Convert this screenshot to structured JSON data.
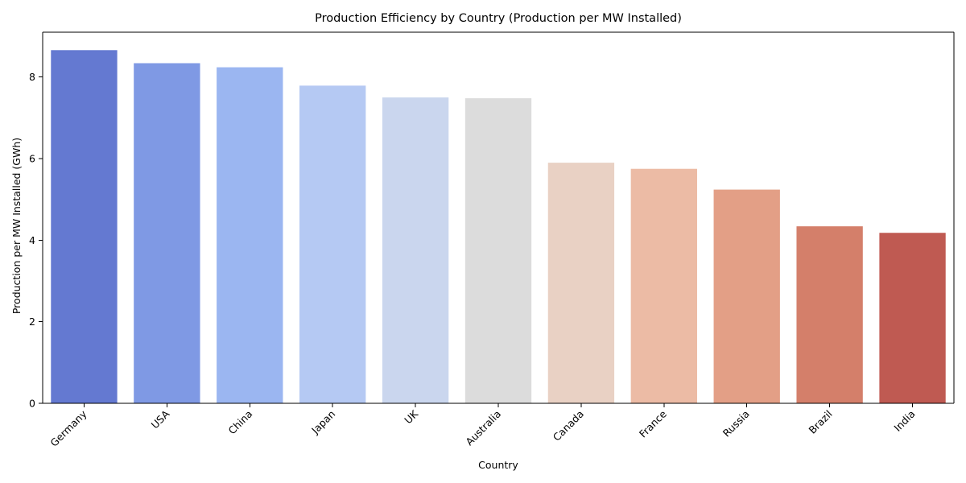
{
  "chart_data": {
    "type": "bar",
    "title": "Production Efficiency by Country (Production per MW Installed)",
    "xlabel": "Country",
    "ylabel": "Production per MW Installed (GWh)",
    "categories": [
      "Germany",
      "USA",
      "China",
      "Japan",
      "UK",
      "Australia",
      "Canada",
      "France",
      "Russia",
      "Brazil",
      "India"
    ],
    "values": [
      8.66,
      8.34,
      8.24,
      7.79,
      7.5,
      7.48,
      5.9,
      5.75,
      5.24,
      4.34,
      4.18
    ],
    "colors": [
      "#6479d1",
      "#7f99e4",
      "#9bb6f1",
      "#b5c9f3",
      "#cad6ee",
      "#dcdcdc",
      "#e9d1c4",
      "#ecbba5",
      "#e39f86",
      "#d47f6a",
      "#bf5a52"
    ],
    "ylim": [
      0,
      9.1
    ],
    "yticks": [
      0,
      2,
      4,
      6,
      8
    ],
    "grid": false,
    "legend": "none"
  }
}
